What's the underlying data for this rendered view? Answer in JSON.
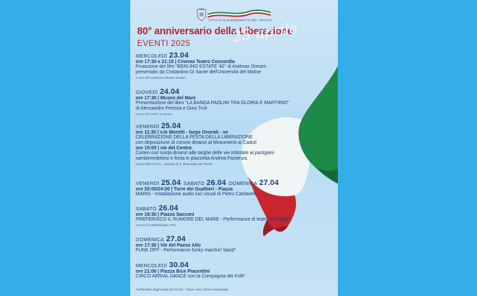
{
  "header": {
    "city_name": "CITTÀ DI SAN BENEDETTO DEL TRONTO",
    "title": "80° anniversario della Liberazione",
    "subtitle": "EVENTI 2025",
    "script_date": "25 aprile"
  },
  "events": [
    {
      "day": "MERCOLEDÌ",
      "date": "23.04",
      "time": "ore 17:30 e 21:15 | Cinema Teatro Concordia",
      "lines": [
        "Proiezione del film \"BERLINO ESTATE '42\" di Andreas Dresen",
        "presentato da Costantino Di Sante dell'Università del Molise"
      ],
      "note": "a cura del Cineforum Buster Keaton"
    },
    {
      "day": "GIOVEDÌ",
      "date": "24.04",
      "time": "ore 17:30 | Museo del Mare",
      "lines": [
        "Presentazione del libro \"LA BANDA PAOLINI TRA GLORIA E MARTIRIO\"",
        "di Alessandro Pertosa e Gino Troli"
      ],
      "note": "a cura di A.N.P.I. e I.S.M.L."
    },
    {
      "day": "VENERDÌ",
      "date": "25.04",
      "time": "ore 11:30 | v.le Moretti - largo Onorati - se",
      "lines": [
        "CELEBRAZIONE DELLA FESTA DELLA LIBERAZIONE",
        "con deposizione di corone dinanzi ai Monumenti ai Caduti"
      ],
      "time2": "ore 15:00 | vie del Centro",
      "lines2": [
        "Corteo con sosta dinanzi alle targhe delle vie intitolate ai partigiani",
        "sambenedettesi e festa in piazzetta Andrea Pazienza."
      ],
      "note": "a cura dell'A.N.P.I. - sezione di S. Benedetto del Tronto"
    },
    {
      "day": "VENERDÌ",
      "date": "25.04",
      "day2": "SABATO",
      "date2": "26.04",
      "day3": "DOMENICA",
      "date3": "27.04",
      "time": "ore 20:00/24:00 | Torre dei Gualtieri - Piazza",
      "lines": [
        "MARIS - Installazione audio luci visual di Pietro Cardarelli"
      ]
    },
    {
      "day": "SABATO",
      "date": "26.04",
      "time": "ore 18:30 | Piazza Sacconi",
      "lines": [
        "PREFERISCO IL RUMORE DEL MARE - Performance di teatro di strada*"
      ],
      "note": "a cura di Caleidoscopio APS"
    },
    {
      "day": "DOMENICA",
      "date": "27.04",
      "time": "ore 17:30 | Vie del Paese Alto",
      "lines": [
        "FUNK OFF - Performance funky marchin' band*"
      ]
    },
    {
      "day": "MERCOLEDÌ",
      "date": "30.04",
      "time": "ore 21:00 | Piazza Bice Piacentini",
      "lines": [
        "CIRCO AERIAL DANCE con la Compagnia dei Folli*"
      ]
    }
  ],
  "footnote": "*nell'ambito degli eventi del PAUD - Piano Aree Urbane Degradate",
  "colors": {
    "background": "#33aee8",
    "title": "#b2253a",
    "text": "#1c3b6e",
    "flag_green": "#1d8a47",
    "flag_red": "#c8252e"
  }
}
